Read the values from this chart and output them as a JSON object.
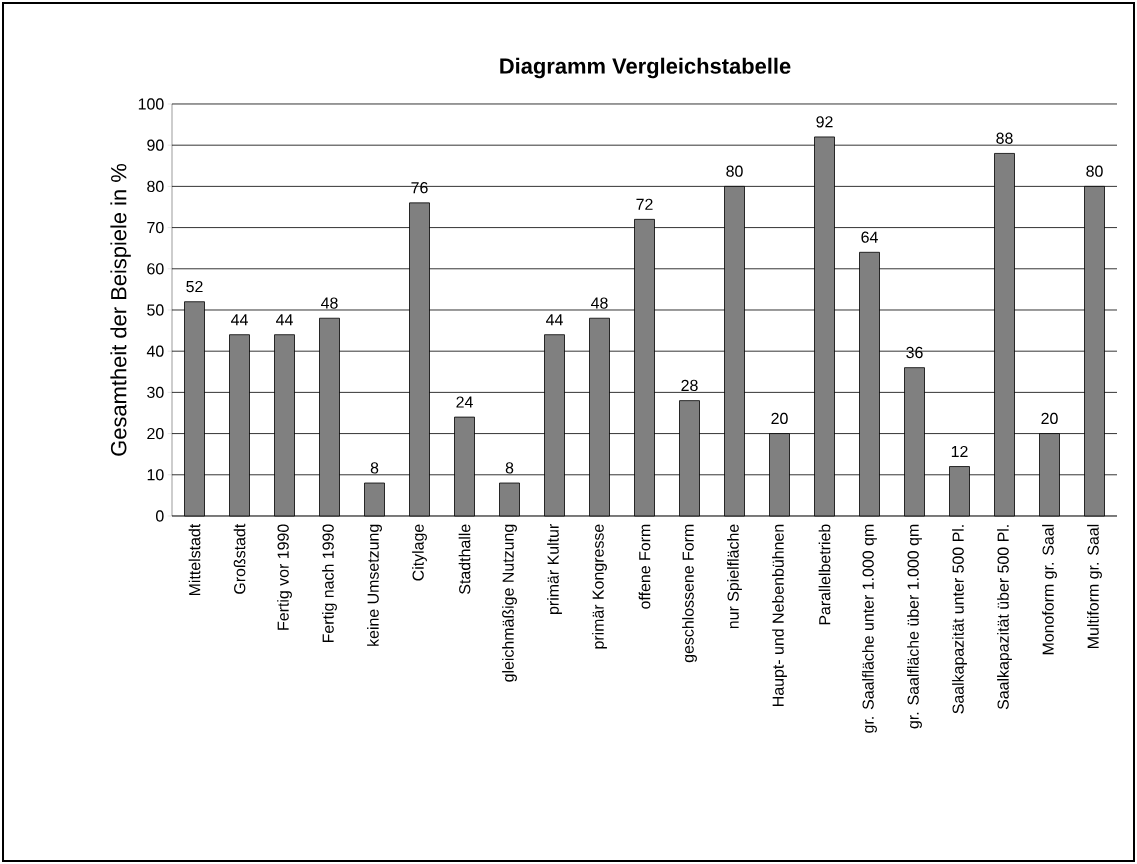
{
  "chart_data": {
    "type": "bar",
    "title": "Diagramm Vergleichstabelle",
    "ylabel": "Gesamtheit der Beispiele in %",
    "categories": [
      "Mittelstadt",
      "Großstadt",
      "Fertig vor 1990",
      "Fertig nach 1990",
      "keine Umsetzung",
      "Citylage",
      "Stadthalle",
      "gleichmäßige Nutzung",
      "primär Kultur",
      "primär Kongresse",
      "offene Form",
      "geschlossene Form",
      "nur Spielfläche",
      "Haupt- und Nebenbühnen",
      "Parallelbetrieb",
      "gr. Saalfläche unter 1.000 qm",
      "gr. Saalfläche über 1.000 qm",
      "Saalkapazität unter 500 Pl.",
      "Saalkapazität über 500 Pl.",
      "Monoform gr. Saal",
      "Multiform gr. Saal"
    ],
    "values": [
      52,
      44,
      44,
      48,
      8,
      76,
      24,
      8,
      44,
      48,
      72,
      28,
      80,
      20,
      92,
      64,
      36,
      12,
      88,
      20,
      80
    ],
    "color": "#808080",
    "ylim": [
      0,
      100
    ],
    "yticks": [
      0,
      10,
      20,
      30,
      40,
      50,
      60,
      70,
      80,
      90,
      100
    ],
    "grid": "y",
    "data_labels": true
  }
}
